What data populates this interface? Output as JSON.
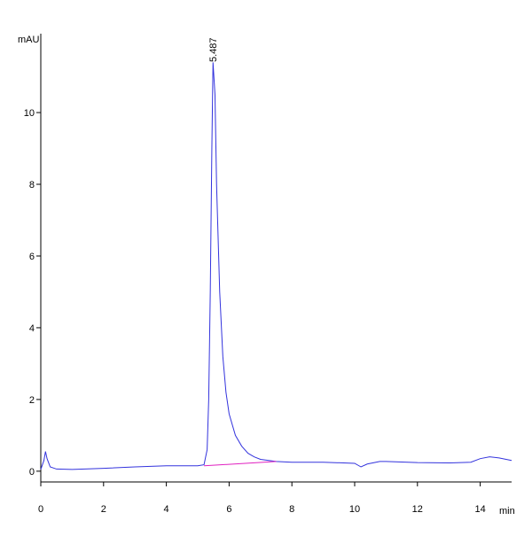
{
  "chart_data": {
    "type": "line",
    "y_label": "mAU",
    "x_label": "min",
    "xlim": [
      0,
      15
    ],
    "xticks": [
      0,
      2,
      4,
      6,
      8,
      10,
      12,
      14
    ],
    "ylim": [
      -0.3,
      12.2
    ],
    "yticks": [
      0,
      2,
      4,
      6,
      8,
      10
    ],
    "series": [
      {
        "color": "#3333dd",
        "x": [
          0,
          0.1,
          0.15,
          0.2,
          0.3,
          0.5,
          1,
          2,
          3,
          4,
          5,
          5.2,
          5.3,
          5.35,
          5.4,
          5.45,
          5.487,
          5.55,
          5.6,
          5.7,
          5.8,
          5.9,
          6.0,
          6.2,
          6.4,
          6.6,
          6.8,
          7.0,
          7.5,
          8,
          9,
          10,
          10.2,
          10.4,
          10.8,
          11,
          12,
          13,
          13.7,
          14,
          14.3,
          14.6,
          15
        ],
        "values": [
          0.05,
          0.3,
          0.55,
          0.35,
          0.12,
          0.06,
          0.05,
          0.08,
          0.12,
          0.15,
          0.15,
          0.18,
          0.6,
          2,
          5,
          9,
          11.4,
          10.5,
          8,
          5,
          3.2,
          2.2,
          1.6,
          1.0,
          0.7,
          0.5,
          0.4,
          0.33,
          0.27,
          0.25,
          0.25,
          0.22,
          0.12,
          0.2,
          0.27,
          0.27,
          0.24,
          0.23,
          0.25,
          0.35,
          0.4,
          0.37,
          0.3
        ]
      },
      {
        "color": "#e020c0",
        "x": [
          5.2,
          7.5
        ],
        "values": [
          0.15,
          0.27
        ]
      }
    ],
    "annotations": [
      {
        "text": "5.487",
        "x": 5.487
      }
    ]
  }
}
